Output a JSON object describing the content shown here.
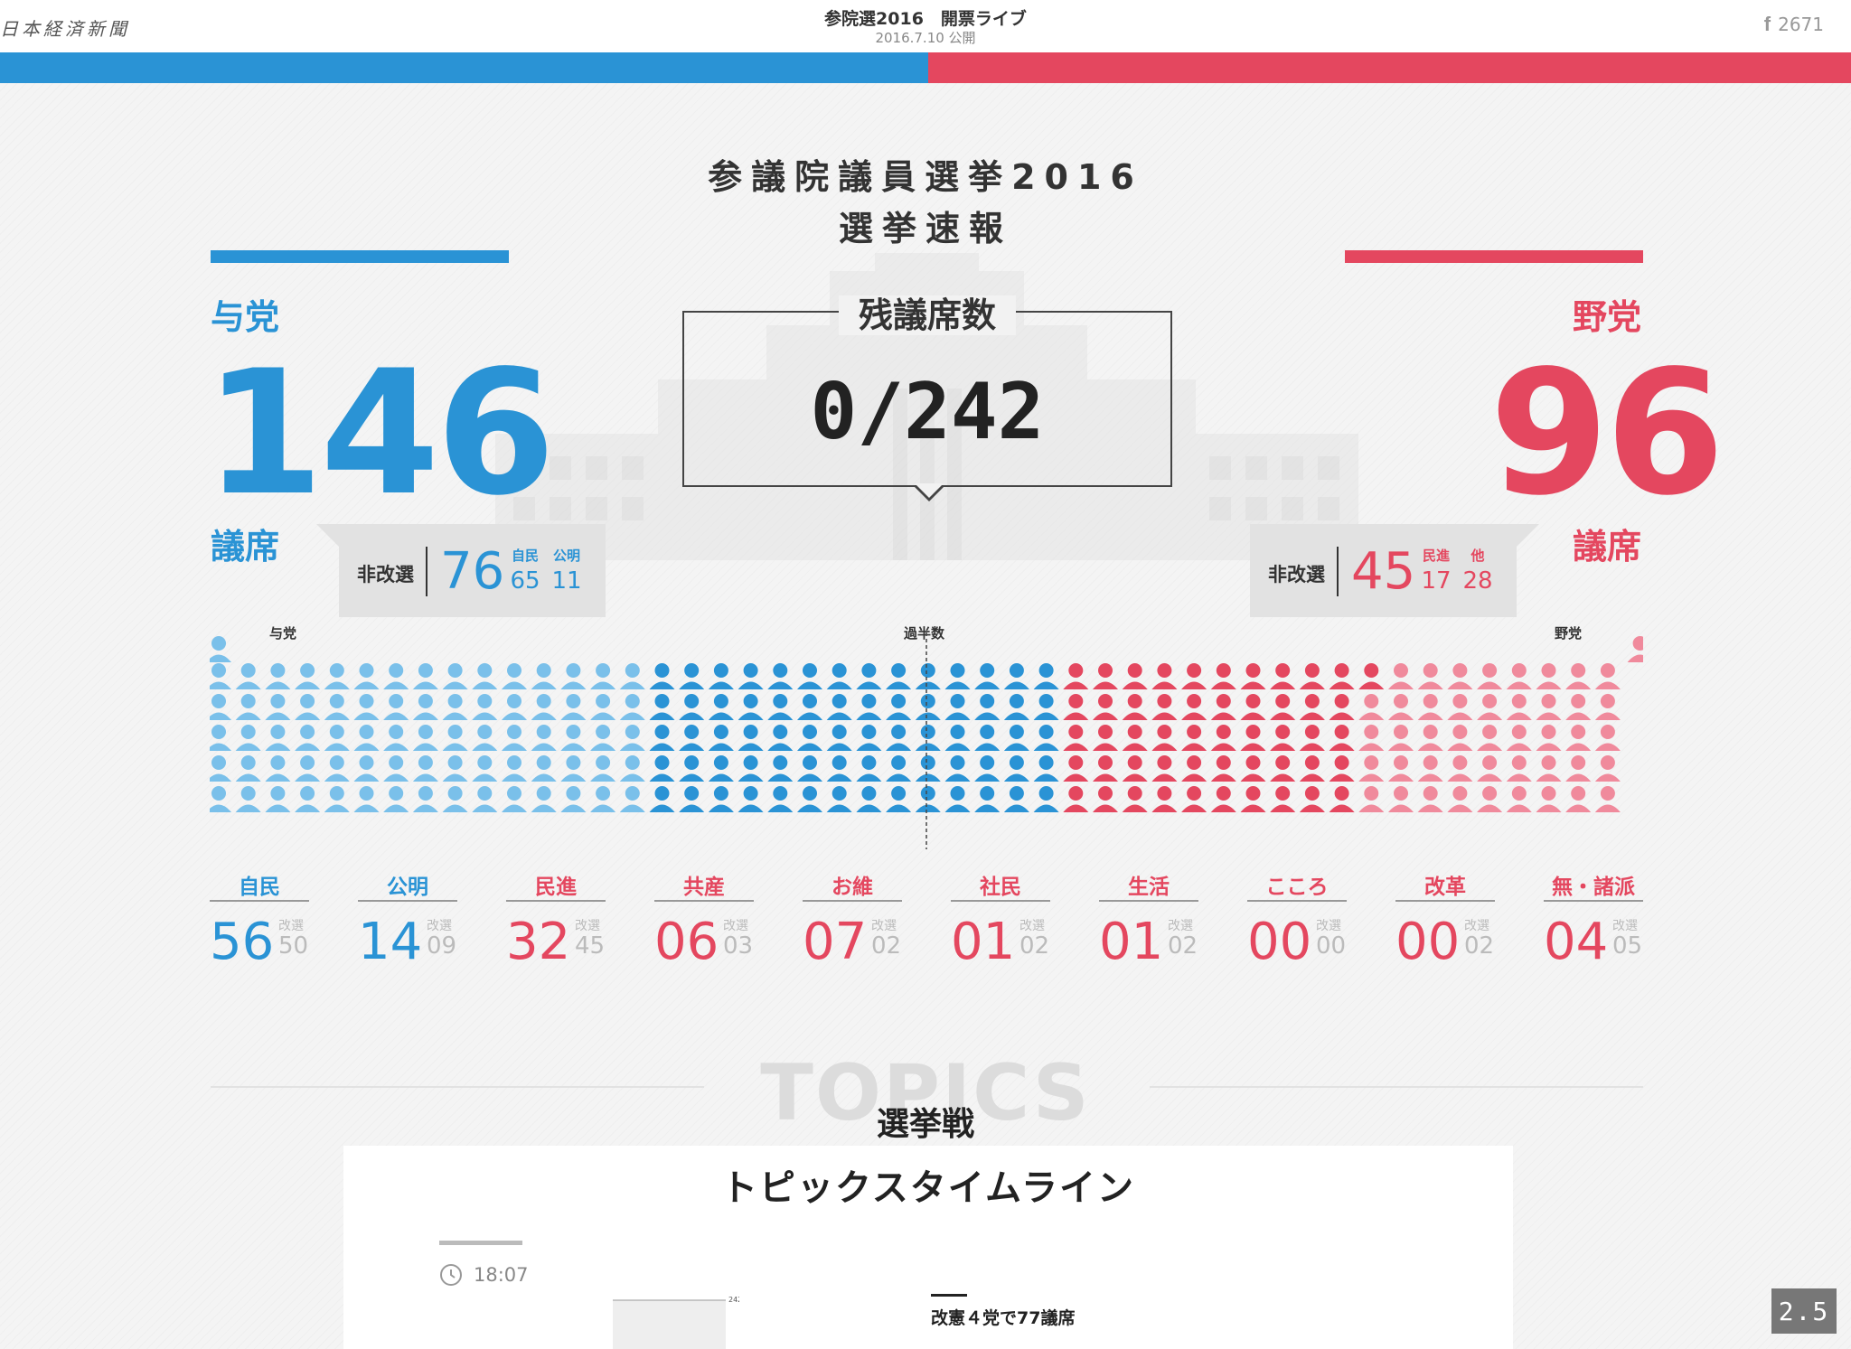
{
  "header": {
    "logo": "日本経済新聞",
    "title": "参院選2016　開票ライブ",
    "date": "2016.7.10 公開",
    "facebook_count": "2671"
  },
  "hero": {
    "title": "参議院議員選挙2016",
    "subtitle": "選挙速報"
  },
  "ruling": {
    "label": "与党",
    "seats": "146",
    "seats_unit": "議席",
    "nonrev_label": "非改選",
    "nonrev_total": "76",
    "breakdown": [
      {
        "party": "自民",
        "value": "65"
      },
      {
        "party": "公明",
        "value": "11"
      }
    ]
  },
  "opposition": {
    "label": "野党",
    "seats": "96",
    "seats_unit": "議席",
    "nonrev_label": "非改選",
    "nonrev_total": "45",
    "breakdown": [
      {
        "party": "民進",
        "value": "17"
      },
      {
        "party": "他",
        "value": "28"
      }
    ]
  },
  "remaining": {
    "label": "残議席数",
    "value": "0/242"
  },
  "seat_chart": {
    "left_label": "与党",
    "center_label": "過半数",
    "right_label": "野党",
    "total": 242,
    "ruling_nonrev": 76,
    "ruling_new": 70,
    "opposition_new": 51,
    "opposition_nonrev": 45,
    "colors": {
      "ruling_nonrev": "#7ac0ea",
      "ruling_new": "#2a93d5",
      "opposition_new": "#e4475f",
      "opposition_nonrev": "#f08a9c"
    }
  },
  "parties": [
    {
      "name": "自民",
      "current": "56",
      "rev_label": "改選",
      "rev": "50",
      "color": "blue"
    },
    {
      "name": "公明",
      "current": "14",
      "rev_label": "改選",
      "rev": "09",
      "color": "blue"
    },
    {
      "name": "民進",
      "current": "32",
      "rev_label": "改選",
      "rev": "45",
      "color": "red"
    },
    {
      "name": "共産",
      "current": "06",
      "rev_label": "改選",
      "rev": "03",
      "color": "red"
    },
    {
      "name": "お維",
      "current": "07",
      "rev_label": "改選",
      "rev": "02",
      "color": "red"
    },
    {
      "name": "社民",
      "current": "01",
      "rev_label": "改選",
      "rev": "02",
      "color": "red"
    },
    {
      "name": "生活",
      "current": "01",
      "rev_label": "改選",
      "rev": "02",
      "color": "red"
    },
    {
      "name": "こころ",
      "current": "00",
      "rev_label": "改選",
      "rev": "00",
      "color": "red"
    },
    {
      "name": "改革",
      "current": "00",
      "rev_label": "改選",
      "rev": "02",
      "color": "red"
    },
    {
      "name": "無・諸派",
      "current": "04",
      "rev_label": "改選",
      "rev": "05",
      "color": "red"
    }
  ],
  "topics": {
    "bg_text": "TOPICS",
    "title": "選挙戦",
    "timeline_title": "トピックスタイムライン",
    "time": "18:07",
    "chart_tick": "242",
    "headline": "改憲４党で77議席"
  },
  "zoom": "2.5"
}
